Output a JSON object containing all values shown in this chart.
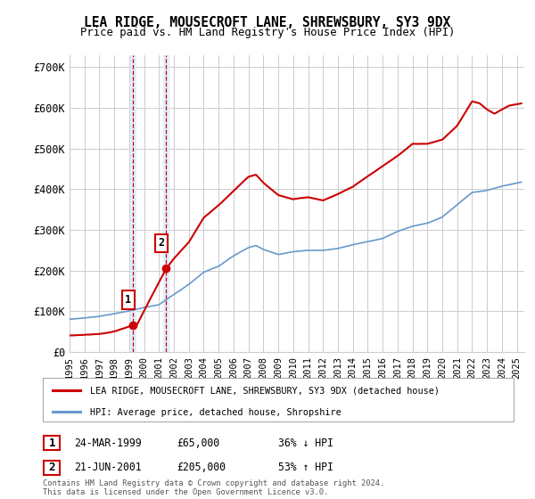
{
  "title": "LEA RIDGE, MOUSECROFT LANE, SHREWSBURY, SY3 9DX",
  "subtitle": "Price paid vs. HM Land Registry's House Price Index (HPI)",
  "ylabel_ticks": [
    "£0",
    "£100K",
    "£200K",
    "£300K",
    "£400K",
    "£500K",
    "£600K",
    "£700K"
  ],
  "ytick_values": [
    0,
    100000,
    200000,
    300000,
    400000,
    500000,
    600000,
    700000
  ],
  "ylim": [
    0,
    730000
  ],
  "xlim_start": 1995.0,
  "xlim_end": 2025.5,
  "sale1_date": 1999.23,
  "sale1_price": 65000,
  "sale2_date": 2001.47,
  "sale2_price": 205000,
  "legend_label_red": "LEA RIDGE, MOUSECROFT LANE, SHREWSBURY, SY3 9DX (detached house)",
  "legend_label_blue": "HPI: Average price, detached house, Shropshire",
  "table_row1": [
    "1",
    "24-MAR-1999",
    "£65,000",
    "36% ↓ HPI"
  ],
  "table_row2": [
    "2",
    "21-JUN-2001",
    "£205,000",
    "53% ↑ HPI"
  ],
  "footer": "Contains HM Land Registry data © Crown copyright and database right 2024.\nThis data is licensed under the Open Government Licence v3.0.",
  "red_color": "#cc0000",
  "blue_color": "#6699cc",
  "shade_color": "#ddeeff",
  "background_color": "#ffffff",
  "grid_color": "#cccccc",
  "hpi_points": [
    [
      1995.0,
      80000
    ],
    [
      1996.0,
      83000
    ],
    [
      1997.0,
      87000
    ],
    [
      1998.0,
      93000
    ],
    [
      1999.0,
      100000
    ],
    [
      2000.0,
      108000
    ],
    [
      2001.0,
      115000
    ],
    [
      2002.0,
      140000
    ],
    [
      2003.0,
      165000
    ],
    [
      2004.0,
      195000
    ],
    [
      2005.0,
      210000
    ],
    [
      2006.0,
      235000
    ],
    [
      2007.0,
      255000
    ],
    [
      2007.5,
      260000
    ],
    [
      2008.0,
      250000
    ],
    [
      2009.0,
      238000
    ],
    [
      2010.0,
      245000
    ],
    [
      2011.0,
      248000
    ],
    [
      2012.0,
      248000
    ],
    [
      2013.0,
      253000
    ],
    [
      2014.0,
      262000
    ],
    [
      2015.0,
      270000
    ],
    [
      2016.0,
      278000
    ],
    [
      2017.0,
      295000
    ],
    [
      2018.0,
      308000
    ],
    [
      2019.0,
      315000
    ],
    [
      2020.0,
      330000
    ],
    [
      2021.0,
      360000
    ],
    [
      2022.0,
      390000
    ],
    [
      2023.0,
      395000
    ],
    [
      2024.0,
      405000
    ],
    [
      2025.3,
      415000
    ]
  ],
  "red_points": [
    [
      1995.0,
      40000
    ],
    [
      1996.0,
      42000
    ],
    [
      1997.0,
      44000
    ],
    [
      1998.0,
      50000
    ],
    [
      1999.23,
      65000
    ],
    [
      1999.5,
      65000
    ],
    [
      2001.47,
      205000
    ],
    [
      2002.0,
      230000
    ],
    [
      2003.0,
      270000
    ],
    [
      2004.0,
      330000
    ],
    [
      2005.0,
      360000
    ],
    [
      2006.0,
      395000
    ],
    [
      2007.0,
      430000
    ],
    [
      2007.5,
      435000
    ],
    [
      2008.0,
      415000
    ],
    [
      2009.0,
      385000
    ],
    [
      2010.0,
      375000
    ],
    [
      2011.0,
      380000
    ],
    [
      2012.0,
      372000
    ],
    [
      2013.0,
      388000
    ],
    [
      2014.0,
      405000
    ],
    [
      2015.0,
      430000
    ],
    [
      2016.0,
      455000
    ],
    [
      2017.0,
      480000
    ],
    [
      2018.0,
      510000
    ],
    [
      2019.0,
      510000
    ],
    [
      2020.0,
      520000
    ],
    [
      2021.0,
      555000
    ],
    [
      2022.0,
      615000
    ],
    [
      2022.5,
      610000
    ],
    [
      2023.0,
      595000
    ],
    [
      2023.5,
      585000
    ],
    [
      2024.0,
      595000
    ],
    [
      2024.5,
      605000
    ],
    [
      2025.3,
      610000
    ]
  ]
}
